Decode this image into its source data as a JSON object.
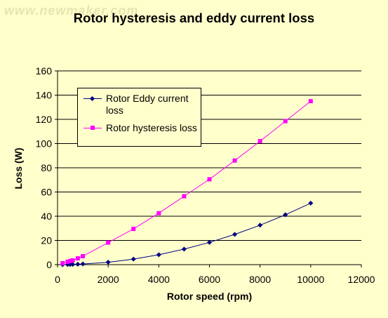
{
  "watermark": "www.newmaker.com",
  "chart_data": {
    "type": "line",
    "title": "Rotor hysteresis and eddy current loss",
    "xlabel": "Rotor speed (rpm)",
    "ylabel": "Loss (W)",
    "xlim": [
      0,
      12000
    ],
    "ylim": [
      0,
      160
    ],
    "xticks": [
      0,
      2000,
      4000,
      6000,
      8000,
      10000,
      12000
    ],
    "yticks": [
      0,
      20,
      40,
      60,
      80,
      100,
      120,
      140,
      160
    ],
    "grid": "horizontal",
    "legend_position": "upper-left",
    "series": [
      {
        "name": "Rotor Eddy current loss",
        "color": "#000080",
        "marker": "diamond",
        "x": [
          200,
          400,
          500,
          600,
          800,
          1000,
          2000,
          3000,
          4000,
          5000,
          6000,
          7000,
          8000,
          9000,
          10000
        ],
        "y": [
          0.02,
          0.1,
          0.15,
          0.2,
          0.35,
          0.55,
          2,
          4.6,
          8.2,
          12.8,
          18.4,
          25,
          32.6,
          41.2,
          50.8
        ]
      },
      {
        "name": "Rotor hysteresis loss",
        "color": "#ff00ff",
        "marker": "square",
        "x": [
          200,
          400,
          500,
          600,
          800,
          1000,
          2000,
          3000,
          4000,
          5000,
          6000,
          7000,
          8000,
          9000,
          10000
        ],
        "y": [
          1.2,
          2.4,
          3,
          3.6,
          5.2,
          7,
          18.2,
          29.5,
          42.5,
          56.5,
          70.5,
          86,
          102,
          118.5,
          135
        ]
      }
    ]
  }
}
